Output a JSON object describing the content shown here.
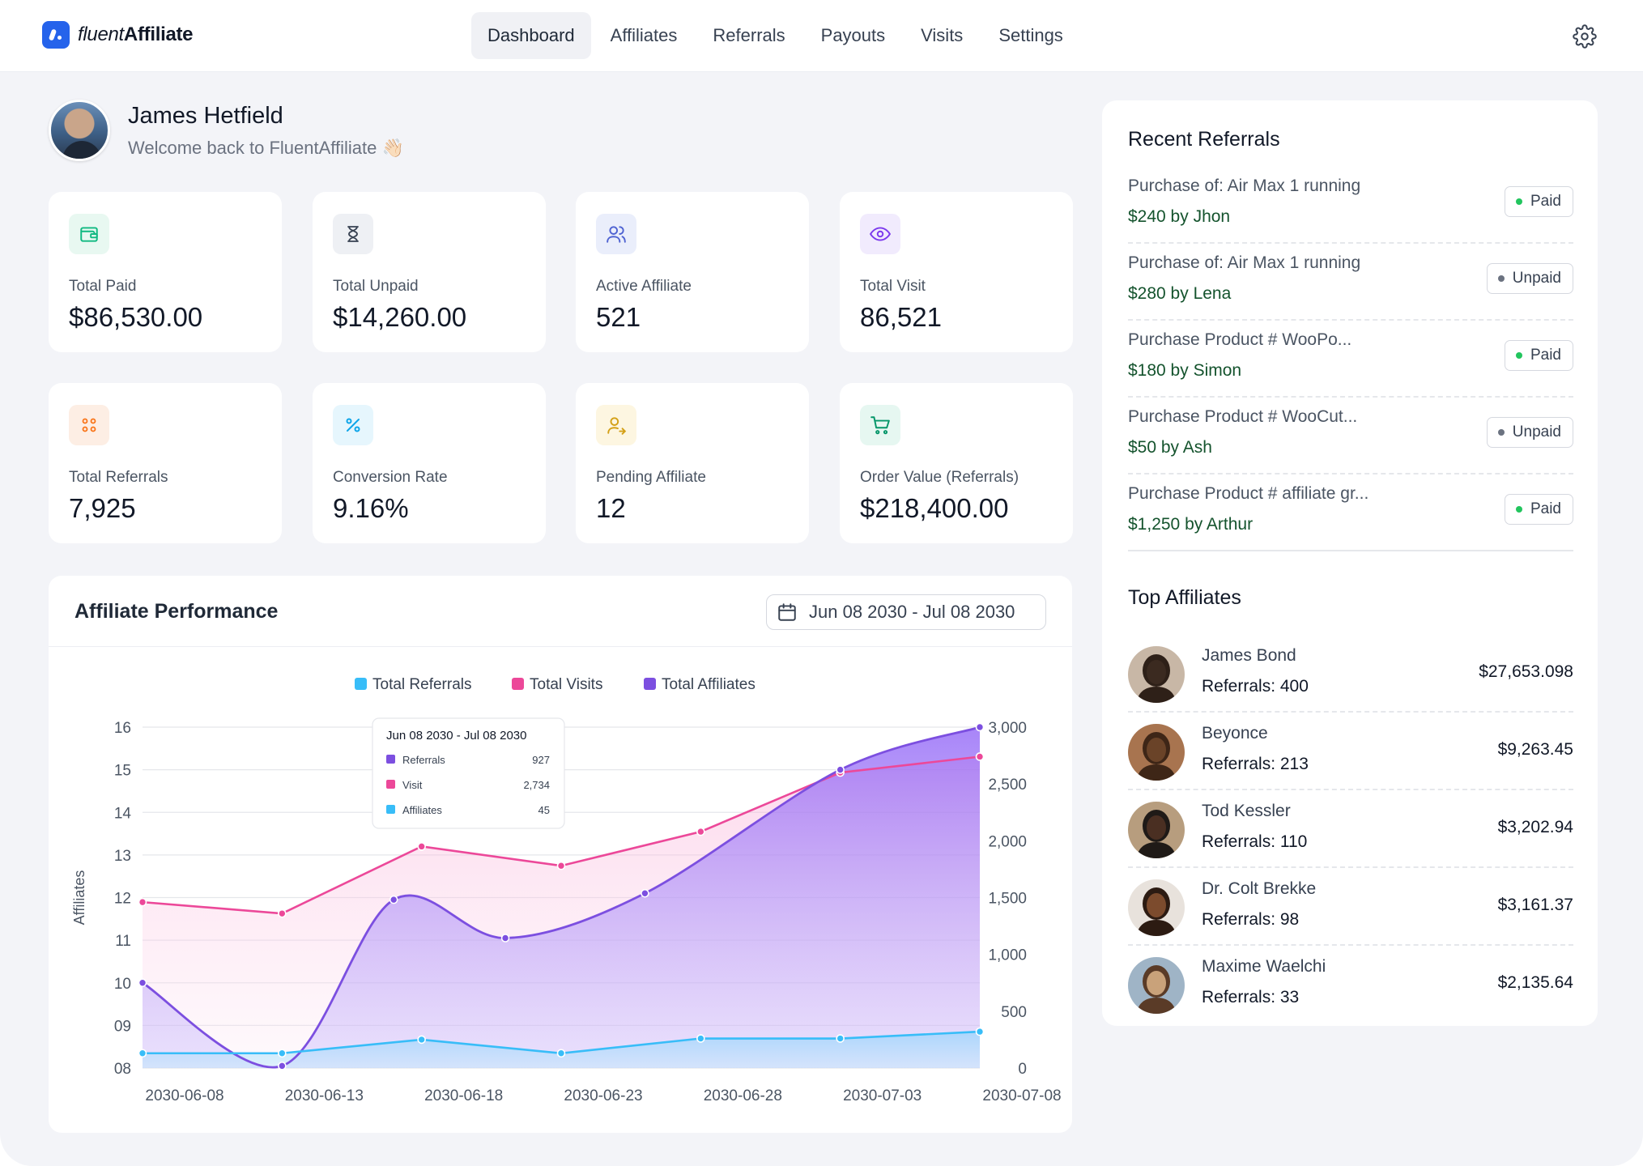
{
  "app": {
    "logo_light": "fluent",
    "logo_bold": "Affiliate"
  },
  "nav": {
    "items": [
      "Dashboard",
      "Affiliates",
      "Referrals",
      "Payouts",
      "Visits",
      "Settings"
    ],
    "active": "Dashboard"
  },
  "profile": {
    "name": "James Hetfield",
    "welcome": "Welcome back to FluentAffiliate 👋🏻"
  },
  "stats": [
    {
      "label": "Total Paid",
      "value": "$86,530.00",
      "icon": "wallet-icon",
      "color": "#10b981",
      "bg": "#e8f8f1"
    },
    {
      "label": "Total Unpaid",
      "value": "$14,260.00",
      "icon": "hourglass-icon",
      "color": "#374151",
      "bg": "#eef0f4"
    },
    {
      "label": "Active Affiliate",
      "value": "521",
      "icon": "users-icon",
      "color": "#4f63d2",
      "bg": "#eaeefb"
    },
    {
      "label": "Total Visit",
      "value": "86,521",
      "icon": "eye-icon",
      "color": "#7c3aed",
      "bg": "#f1ebfd"
    },
    {
      "label": "Total Referrals",
      "value": "7,925",
      "icon": "referrals-icon",
      "color": "#f97316",
      "bg": "#fdeee4"
    },
    {
      "label": "Conversion Rate",
      "value": "9.16%",
      "icon": "percent-icon",
      "color": "#0ea5e9",
      "bg": "#e6f6fd"
    },
    {
      "label": "Pending Affiliate",
      "value": "12",
      "icon": "user-pending-icon",
      "color": "#d4a017",
      "bg": "#fdf6e1"
    },
    {
      "label": "Order Value (Referrals)",
      "value": "$218,400.00",
      "icon": "cart-icon",
      "color": "#059669",
      "bg": "#e6f7f1"
    }
  ],
  "performance": {
    "title": "Affiliate Performance",
    "date_range": "Jun 08 2030 - Jul 08 2030"
  },
  "tooltip": {
    "title": "Jun 08 2030 - Jul 08 2030",
    "rows": [
      {
        "label": "Referrals",
        "value": "927",
        "color": "#7c4fe0"
      },
      {
        "label": "Visit",
        "value": "2,734",
        "color": "#ec4899"
      },
      {
        "label": "Affiliates",
        "value": "45",
        "color": "#38bdf8"
      }
    ]
  },
  "chart_data": {
    "type": "area",
    "x": [
      "2030-06-08",
      "2030-06-13",
      "2030-06-18",
      "2030-06-23",
      "2030-06-28",
      "2030-07-03",
      "2030-07-08"
    ],
    "x_tick_labels": [
      "2030-06-08",
      "2030-06-13",
      "2030-06-18",
      "2030-06-23",
      "2030-06-28",
      "2030-07-03",
      "2030-07-08"
    ],
    "ylabel": "Affiliates",
    "y_left_ticks": [
      "08",
      "09",
      "10",
      "11",
      "12",
      "13",
      "14",
      "15",
      "16"
    ],
    "y_left_lim": [
      8,
      16
    ],
    "y_right_ticks": [
      "0",
      "500",
      "1,000",
      "1,500",
      "2,000",
      "2,500",
      "3,000"
    ],
    "y_right_lim": [
      0,
      3000
    ],
    "legend": [
      "Total Referrals",
      "Total Visits",
      "Total Affiliates"
    ],
    "legend_position": "top-center",
    "grid": true,
    "series": [
      {
        "name": "Total Referrals",
        "color": "#38bdf8",
        "axis": "right",
        "points": [
          [
            "2030-06-08",
            130
          ],
          [
            "2030-06-13",
            130
          ],
          [
            "2030-06-18",
            250
          ],
          [
            "2030-06-23",
            130
          ],
          [
            "2030-06-28",
            260
          ],
          [
            "2030-07-03",
            260
          ],
          [
            "2030-07-08",
            320
          ]
        ]
      },
      {
        "name": "Total Visits",
        "color": "#ec4899",
        "axis": "right",
        "points": [
          [
            "2030-06-08",
            1460
          ],
          [
            "2030-06-13",
            1360
          ],
          [
            "2030-06-18",
            1950
          ],
          [
            "2030-06-23",
            1780
          ],
          [
            "2030-06-28",
            2080
          ],
          [
            "2030-07-03",
            2600
          ],
          [
            "2030-07-08",
            2740
          ]
        ]
      },
      {
        "name": "Total Affiliates",
        "color": "#7c4fe0",
        "axis": "left",
        "points": [
          [
            "2030-06-08",
            10.0
          ],
          [
            "2030-06-13",
            8.05
          ],
          [
            "2030-06-17",
            11.95
          ],
          [
            "2030-06-21",
            11.05
          ],
          [
            "2030-06-26",
            12.1
          ],
          [
            "2030-07-03",
            15.0
          ],
          [
            "2030-07-08",
            16.0
          ]
        ]
      }
    ]
  },
  "recent_referrals": {
    "title": "Recent Referrals",
    "items": [
      {
        "title": "Purchase of: Air Max 1 running",
        "amount": "$240 by Jhon",
        "status": "Paid"
      },
      {
        "title": "Purchase of: Air Max 1 running",
        "amount": "$280 by Lena",
        "status": "Unpaid"
      },
      {
        "title": "Purchase Product # WooPo...",
        "amount": "$180 by Simon",
        "status": "Paid"
      },
      {
        "title": "Purchase Product # WooCut...",
        "amount": "$50 by Ash",
        "status": "Unpaid"
      },
      {
        "title": "Purchase Product # affiliate gr...",
        "amount": "$1,250 by Arthur",
        "status": "Paid"
      }
    ],
    "status_colors": {
      "Paid": "#22c55e",
      "Unpaid": "#6b7280"
    }
  },
  "top_affiliates": {
    "title": "Top Affiliates",
    "items": [
      {
        "name": "James Bond",
        "referrals": "Referrals: 400",
        "amount": "$27,653.098"
      },
      {
        "name": "Beyonce",
        "referrals": "Referrals: 213",
        "amount": "$9,263.45"
      },
      {
        "name": "Tod Kessler",
        "referrals": "Referrals: 110",
        "amount": "$3,202.94"
      },
      {
        "name": "Dr. Colt Brekke",
        "referrals": "Referrals: 98",
        "amount": "$3,161.37"
      },
      {
        "name": "Maxime Waelchi",
        "referrals": "Referrals: 33",
        "amount": "$2,135.64"
      }
    ]
  }
}
